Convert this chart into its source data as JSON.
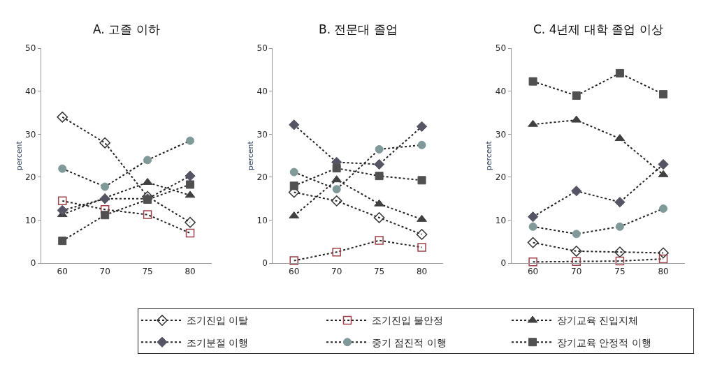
{
  "chart_data": [
    {
      "type": "line",
      "title": "A. 고졸 이하",
      "ylabel": "percent",
      "categories": [
        "60",
        "70",
        "75",
        "80"
      ],
      "ylim": [
        0,
        50
      ],
      "yticks": [
        0,
        10,
        20,
        30,
        40,
        50
      ],
      "legend": "bottom",
      "line_style": "dotted",
      "series": [
        {
          "name": "조기진입 이탈",
          "color": "#333333",
          "marker": "diamond",
          "values": [
            34,
            28,
            15.5,
            9.5
          ]
        },
        {
          "name": "조기진입 불안정",
          "color": "#a0404a",
          "marker": "square",
          "values": [
            14.5,
            12.5,
            11.3,
            7
          ]
        },
        {
          "name": "장기교육 진입지체",
          "color": "#404040",
          "marker": "triangle",
          "values": [
            11.3,
            15.2,
            18.8,
            15.8
          ]
        },
        {
          "name": "조기분절 이행",
          "color": "#555566",
          "marker": "diamond",
          "values": [
            12.3,
            15,
            15,
            20.3
          ]
        },
        {
          "name": "중기 점진적 이행",
          "color": "#7f9a98",
          "marker": "circle",
          "values": [
            22,
            17.8,
            24,
            28.5
          ]
        },
        {
          "name": "장기교육 안정적 이행",
          "color": "#505050",
          "marker": "square",
          "values": [
            5.2,
            11.2,
            14.8,
            18.3
          ]
        }
      ]
    },
    {
      "type": "line",
      "title": "B. 전문대 졸업",
      "ylabel": "percent",
      "categories": [
        "60",
        "70",
        "75",
        "80"
      ],
      "ylim": [
        0,
        50
      ],
      "yticks": [
        0,
        10,
        20,
        30,
        40,
        50
      ],
      "legend": "bottom",
      "line_style": "dotted",
      "series": [
        {
          "name": "조기진입 이탈",
          "color": "#333333",
          "marker": "diamond",
          "values": [
            16.5,
            14.5,
            10.6,
            6.7
          ]
        },
        {
          "name": "조기진입 불안정",
          "color": "#a0404a",
          "marker": "square",
          "values": [
            0.6,
            2.6,
            5.3,
            3.7
          ]
        },
        {
          "name": "장기교육 진입지체",
          "color": "#404040",
          "marker": "triangle",
          "values": [
            11,
            19.4,
            13.8,
            10.2
          ]
        },
        {
          "name": "조기분절 이행",
          "color": "#555566",
          "marker": "diamond",
          "values": [
            32.2,
            23.5,
            23,
            31.8
          ]
        },
        {
          "name": "중기 점진적 이행",
          "color": "#7f9a98",
          "marker": "circle",
          "values": [
            21.2,
            17.2,
            26.5,
            27.5
          ]
        },
        {
          "name": "장기교육 안정적 이행",
          "color": "#505050",
          "marker": "square",
          "values": [
            18,
            22.1,
            20.3,
            19.3
          ]
        }
      ]
    },
    {
      "type": "line",
      "title": "C. 4년제 대학 졸업 이상",
      "ylabel": "percent",
      "categories": [
        "60",
        "70",
        "75",
        "80"
      ],
      "ylim": [
        0,
        50
      ],
      "yticks": [
        0,
        10,
        20,
        30,
        40,
        50
      ],
      "legend": "bottom",
      "line_style": "dotted",
      "series": [
        {
          "name": "조기진입 이탈",
          "color": "#333333",
          "marker": "diamond",
          "values": [
            4.8,
            2.8,
            2.6,
            2.4
          ]
        },
        {
          "name": "조기진입 불안정",
          "color": "#a0404a",
          "marker": "square",
          "values": [
            0.3,
            0.4,
            0.5,
            1
          ]
        },
        {
          "name": "장기교육 진입지체",
          "color": "#404040",
          "marker": "triangle",
          "values": [
            32.3,
            33.3,
            29,
            20.6
          ]
        },
        {
          "name": "조기분절 이행",
          "color": "#555566",
          "marker": "diamond",
          "values": [
            10.8,
            16.8,
            14.2,
            23
          ]
        },
        {
          "name": "중기 점진적 이행",
          "color": "#7f9a98",
          "marker": "circle",
          "values": [
            8.5,
            6.8,
            8.5,
            12.7
          ]
        },
        {
          "name": "장기교육 안정적 이행",
          "color": "#505050",
          "marker": "square",
          "values": [
            42.3,
            39,
            44.2,
            39.3
          ]
        }
      ]
    }
  ]
}
